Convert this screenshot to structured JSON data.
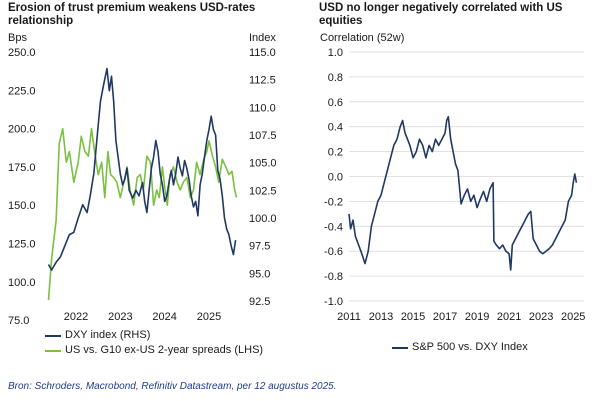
{
  "chart_data": [
    {
      "type": "line",
      "title": "Erosion of trust premium weakens USD-rates relationship",
      "ylabel_left": "Bps",
      "ylabel_right": "Index",
      "ylim_left": [
        87.5,
        250.0
      ],
      "ylim_right": [
        92.5,
        115.0
      ],
      "yticks_left": [
        "250.0",
        "225.0",
        "200.0",
        "175.0",
        "150.0",
        "125.0",
        "100.0",
        "75.0"
      ],
      "yticks_right": [
        "115.0",
        "112.5",
        "110.0",
        "107.5",
        "105.0",
        "102.5",
        "100.0",
        "97.5",
        "95.0",
        "92.5"
      ],
      "xlim": [
        2021.3,
        2025.7
      ],
      "xticks": [
        "2022",
        "2023",
        "2024",
        "2025"
      ],
      "series": [
        {
          "name": "DXY index (RHS)",
          "axis": "right",
          "color": "#1f3864",
          "x": [
            2021.38,
            2021.45,
            2021.55,
            2021.65,
            2021.75,
            2021.85,
            2021.95,
            2022.05,
            2022.15,
            2022.25,
            2022.32,
            2022.4,
            2022.48,
            2022.55,
            2022.62,
            2022.7,
            2022.75,
            2022.8,
            2022.85,
            2022.9,
            2022.95,
            2023.0,
            2023.05,
            2023.1,
            2023.15,
            2023.2,
            2023.28,
            2023.35,
            2023.42,
            2023.5,
            2023.55,
            2023.6,
            2023.65,
            2023.7,
            2023.75,
            2023.8,
            2023.85,
            2023.9,
            2023.95,
            2024.0,
            2024.05,
            2024.1,
            2024.15,
            2024.2,
            2024.25,
            2024.3,
            2024.35,
            2024.4,
            2024.45,
            2024.5,
            2024.55,
            2024.6,
            2024.65,
            2024.7,
            2024.75,
            2024.8,
            2024.85,
            2024.9,
            2024.95,
            2025.0,
            2025.05,
            2025.1,
            2025.15,
            2025.2,
            2025.25,
            2025.3,
            2025.35,
            2025.4,
            2025.45,
            2025.5,
            2025.55,
            2025.6
          ],
          "values": [
            95.8,
            95.3,
            96.0,
            96.5,
            97.5,
            98.5,
            98.7,
            100.0,
            101.2,
            100.5,
            102.0,
            104.0,
            107.5,
            110.5,
            112.0,
            113.5,
            111.5,
            112.8,
            110.5,
            107.0,
            105.5,
            104.0,
            103.0,
            103.5,
            104.5,
            102.5,
            101.8,
            102.5,
            102.0,
            103.2,
            101.5,
            100.5,
            102.5,
            104.5,
            105.5,
            107.0,
            106.0,
            104.0,
            103.0,
            101.5,
            102.0,
            103.3,
            104.3,
            103.0,
            104.0,
            105.5,
            104.5,
            103.8,
            105.2,
            104.5,
            103.5,
            102.0,
            101.0,
            101.5,
            100.2,
            103.0,
            104.0,
            105.5,
            107.0,
            108.0,
            109.2,
            108.0,
            107.5,
            104.3,
            103.5,
            102.0,
            100.0,
            99.0,
            98.5,
            97.5,
            96.7,
            98.0
          ]
        },
        {
          "name": "US vs. G10 ex-US 2-year spreads (LHS)",
          "axis": "left",
          "color": "#7ac142",
          "x": [
            2021.38,
            2021.45,
            2021.55,
            2021.62,
            2021.7,
            2021.78,
            2021.85,
            2021.95,
            2022.05,
            2022.12,
            2022.2,
            2022.28,
            2022.35,
            2022.42,
            2022.5,
            2022.58,
            2022.65,
            2022.72,
            2022.78,
            2022.85,
            2022.92,
            2023.0,
            2023.08,
            2023.15,
            2023.22,
            2023.3,
            2023.38,
            2023.45,
            2023.52,
            2023.6,
            2023.68,
            2023.75,
            2023.82,
            2023.88,
            2023.95,
            2024.0,
            2024.06,
            2024.12,
            2024.2,
            2024.28,
            2024.35,
            2024.42,
            2024.5,
            2024.58,
            2024.65,
            2024.72,
            2024.8,
            2024.88,
            2024.95,
            2025.0,
            2025.08,
            2025.15,
            2025.22,
            2025.3,
            2025.38,
            2025.45,
            2025.52,
            2025.58,
            2025.62
          ],
          "values": [
            88,
            115,
            140,
            190,
            200,
            178,
            185,
            165,
            178,
            195,
            185,
            182,
            200,
            185,
            170,
            178,
            155,
            185,
            170,
            168,
            165,
            155,
            165,
            175,
            160,
            150,
            168,
            170,
            160,
            182,
            178,
            150,
            160,
            155,
            175,
            162,
            150,
            170,
            175,
            165,
            160,
            165,
            168,
            155,
            160,
            178,
            170,
            180,
            185,
            192,
            182,
            175,
            165,
            180,
            175,
            170,
            172,
            160,
            155
          ]
        }
      ],
      "legend": [
        "DXY index (RHS)",
        "US vs. G10 ex-US 2-year spreads (LHS)"
      ]
    },
    {
      "type": "line",
      "title": "USD no longer negatively correlated with US equities",
      "ylabel": "Correlation (52w)",
      "ylim": [
        -1.0,
        1.0
      ],
      "yticks": [
        "1.0",
        "0.8",
        "0.6",
        "0.4",
        "0.2",
        "0.0",
        "-0.2",
        "-0.4",
        "-0.6",
        "-0.8",
        "-1.0"
      ],
      "xlim": [
        2011,
        2025.3
      ],
      "xticks": [
        "2011",
        "2013",
        "2015",
        "2017",
        "2019",
        "2021",
        "2023",
        "2025"
      ],
      "series": [
        {
          "name": "S&P 500 vs. DXY Index",
          "color": "#1f3864",
          "x": [
            2011.0,
            2011.1,
            2011.25,
            2011.4,
            2011.6,
            2011.8,
            2012.0,
            2012.2,
            2012.4,
            2012.6,
            2012.8,
            2013.0,
            2013.2,
            2013.4,
            2013.6,
            2013.8,
            2014.0,
            2014.2,
            2014.35,
            2014.5,
            2014.65,
            2014.8,
            2015.0,
            2015.2,
            2015.4,
            2015.6,
            2015.8,
            2016.0,
            2016.2,
            2016.4,
            2016.6,
            2016.8,
            2017.0,
            2017.1,
            2017.2,
            2017.35,
            2017.5,
            2017.65,
            2017.8,
            2018.0,
            2018.2,
            2018.4,
            2018.6,
            2018.8,
            2019.0,
            2019.2,
            2019.4,
            2019.6,
            2019.8,
            2020.0,
            2020.05,
            2020.2,
            2020.4,
            2020.6,
            2020.8,
            2021.0,
            2021.1,
            2021.2,
            2021.4,
            2021.6,
            2021.8,
            2022.0,
            2022.2,
            2022.35,
            2022.5,
            2022.7,
            2022.9,
            2023.1,
            2023.3,
            2023.5,
            2023.7,
            2023.9,
            2024.1,
            2024.3,
            2024.5,
            2024.7,
            2024.9,
            2025.0,
            2025.1,
            2025.2
          ],
          "values": [
            -0.3,
            -0.42,
            -0.35,
            -0.48,
            -0.55,
            -0.62,
            -0.7,
            -0.6,
            -0.4,
            -0.3,
            -0.2,
            -0.15,
            -0.05,
            0.05,
            0.15,
            0.25,
            0.3,
            0.4,
            0.45,
            0.35,
            0.3,
            0.25,
            0.15,
            0.2,
            0.3,
            0.25,
            0.15,
            0.25,
            0.2,
            0.3,
            0.25,
            0.3,
            0.35,
            0.45,
            0.48,
            0.3,
            0.2,
            0.1,
            0.05,
            -0.22,
            -0.15,
            -0.1,
            -0.2,
            -0.15,
            -0.25,
            -0.18,
            -0.12,
            -0.2,
            -0.1,
            -0.05,
            -0.52,
            -0.55,
            -0.58,
            -0.55,
            -0.6,
            -0.62,
            -0.75,
            -0.55,
            -0.5,
            -0.45,
            -0.4,
            -0.35,
            -0.3,
            -0.28,
            -0.5,
            -0.55,
            -0.6,
            -0.62,
            -0.6,
            -0.58,
            -0.55,
            -0.5,
            -0.45,
            -0.4,
            -0.35,
            -0.2,
            -0.15,
            -0.05,
            0.02,
            -0.05
          ]
        }
      ],
      "legend": [
        "S&P 500 vs. DXY Index"
      ]
    }
  ],
  "source": "Bron: Schroders, Macrobond, Refinitiv Datastream, per 12 augustus 2025."
}
